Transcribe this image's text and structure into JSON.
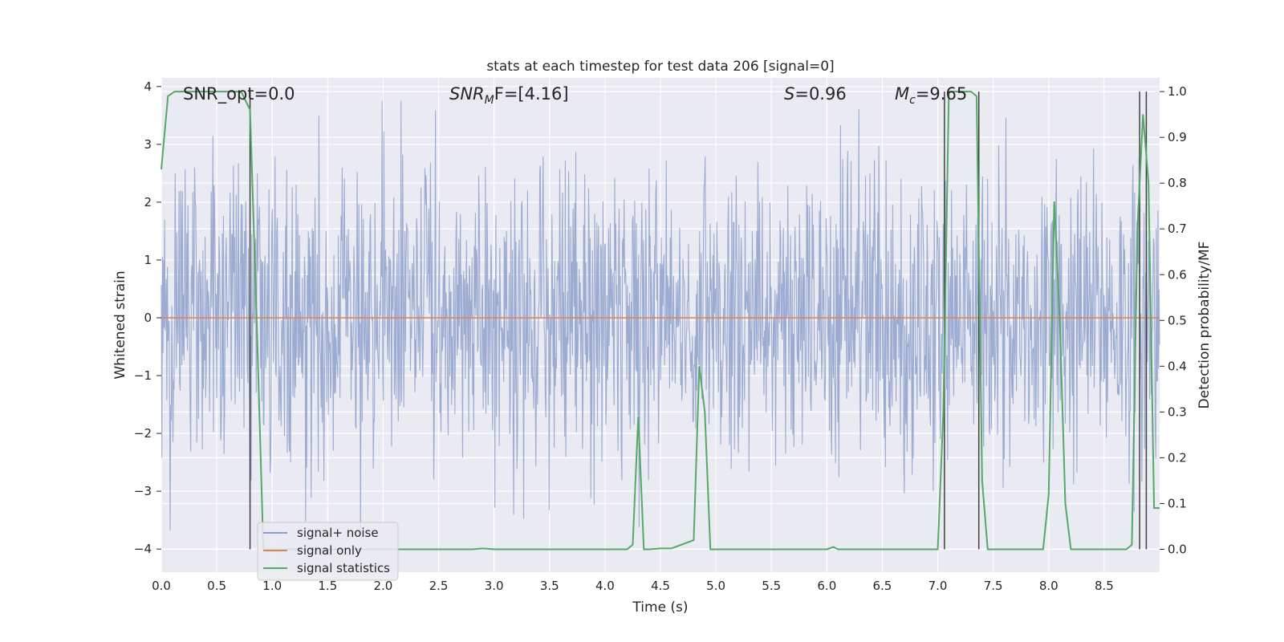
{
  "chart_data": {
    "type": "line",
    "title": "stats at each timestep for test data 206 [signal=0]",
    "xlabel": "Time (s)",
    "ylabel_left": "Whitened strain",
    "ylabel_right": "Detection probability/MF",
    "xlim": [
      0.0,
      9.0
    ],
    "ylim_left": [
      -4.4,
      4.15
    ],
    "ylim_right": [
      -0.05,
      1.03
    ],
    "x_ticks": [
      "0.0",
      "0.5",
      "1.0",
      "1.5",
      "2.0",
      "2.5",
      "3.0",
      "3.5",
      "4.0",
      "4.5",
      "5.0",
      "5.5",
      "6.0",
      "6.5",
      "7.0",
      "7.5",
      "8.0",
      "8.5"
    ],
    "y_left_ticks": [
      "4",
      "3",
      "2",
      "1",
      "0",
      "−1",
      "−2",
      "−3",
      "−4"
    ],
    "y_right_ticks": [
      "1.0",
      "0.9",
      "0.8",
      "0.7",
      "0.6",
      "0.5",
      "0.4",
      "0.3",
      "0.2",
      "0.1",
      "0.0"
    ],
    "grid": true,
    "annotations": {
      "snr_opt": "SNR_opt=0.0",
      "snr_mf_base": "SNR",
      "snr_mf_sub": "M",
      "snr_mf_rest": "F=[4.16]",
      "s_sym": "S",
      "s_val": "=0.96",
      "mc_base": "M",
      "mc_sub": "c",
      "mc_val": "=9.65"
    },
    "legend": {
      "placement": "lower-left",
      "entries": [
        "signal+ noise",
        "signal only",
        "signal statistics"
      ]
    },
    "series": [
      {
        "name": "signal+ noise",
        "axis": "left",
        "color": "#8da0cb",
        "noise_std": 0.95,
        "samples": 1800,
        "duration_s": 9.0
      },
      {
        "name": "signal only",
        "axis": "left",
        "color": "#dd8452",
        "x": [
          0.0,
          9.0
        ],
        "y": [
          0.0,
          0.0
        ]
      },
      {
        "name": "signal statistics",
        "axis": "right",
        "color": "#55a868",
        "x": [
          0.0,
          0.06,
          0.12,
          0.3,
          0.6,
          0.72,
          0.8,
          0.86,
          0.92,
          1.0,
          2.8,
          2.9,
          3.0,
          4.2,
          4.25,
          4.3,
          4.35,
          4.4,
          4.5,
          4.6,
          4.8,
          4.85,
          4.9,
          4.95,
          5.0,
          5.05,
          5.1,
          6.0,
          6.06,
          6.1,
          6.2,
          7.0,
          7.05,
          7.1,
          7.2,
          7.3,
          7.35,
          7.4,
          7.45,
          7.5,
          7.6,
          7.95,
          8.0,
          8.05,
          8.1,
          8.15,
          8.2,
          8.25,
          8.3,
          8.7,
          8.75,
          8.8,
          8.85,
          8.9,
          8.95,
          9.0
        ],
        "y": [
          0.83,
          0.99,
          1.0,
          1.0,
          1.0,
          1.0,
          0.96,
          0.5,
          0.0,
          0.0,
          0.0,
          0.002,
          0.0,
          0.0,
          0.01,
          0.29,
          0.0,
          0.0,
          0.002,
          0.002,
          0.02,
          0.4,
          0.3,
          0.0,
          0.0,
          0.0,
          0.0,
          0.0,
          0.005,
          0.0,
          0.0,
          0.0,
          0.3,
          1.0,
          1.0,
          1.0,
          0.99,
          0.15,
          0.0,
          0.0,
          0.0,
          0.0,
          0.12,
          0.76,
          0.5,
          0.1,
          0.0,
          0.0,
          0.0,
          0.0,
          0.01,
          0.7,
          0.95,
          0.8,
          0.09,
          0.09
        ]
      }
    ],
    "vertical_markers_s": [
      0.8,
      7.06,
      7.37,
      8.82,
      8.88
    ]
  },
  "colors": {
    "plot_bg": "#eaeaf2",
    "grid": "#ffffff",
    "marker_line": "#404040"
  }
}
